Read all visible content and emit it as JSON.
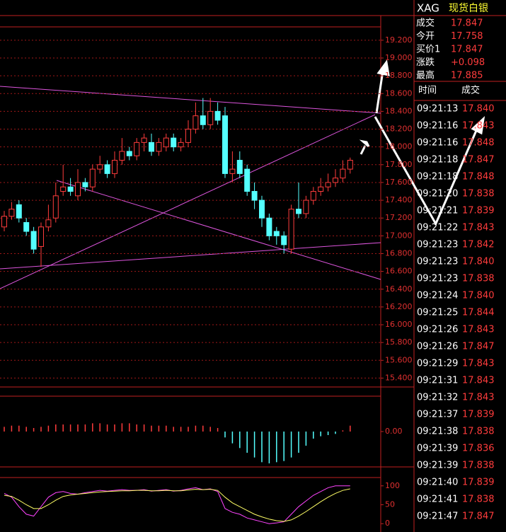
{
  "chart_data": [
    {
      "type": "candlestick",
      "up_color": "#ff3c3c",
      "down_color": "#54ffff",
      "grid": true,
      "open": [
        17.1,
        17.22,
        17.35,
        17.15,
        17.05,
        16.88,
        17.1,
        17.2,
        17.5,
        17.55,
        17.45,
        17.6,
        17.55,
        17.75,
        17.8,
        17.7,
        17.85,
        17.95,
        17.9,
        18.05,
        18.05,
        17.95,
        18.0,
        18.1,
        18.0,
        18.05,
        18.2,
        18.35,
        18.25,
        18.4,
        18.35,
        17.7,
        17.85,
        17.75,
        17.5,
        17.4,
        17.2,
        17.05,
        17.0,
        16.85,
        17.3,
        17.25,
        17.4,
        17.5,
        17.55,
        17.6,
        17.65,
        17.75
      ],
      "high": [
        17.28,
        17.38,
        17.4,
        17.2,
        17.1,
        17.15,
        17.35,
        17.6,
        17.8,
        17.65,
        17.75,
        17.65,
        17.8,
        17.9,
        17.85,
        17.95,
        18.1,
        18.0,
        18.1,
        18.15,
        18.15,
        18.1,
        18.15,
        18.15,
        18.1,
        18.3,
        18.5,
        18.55,
        18.55,
        18.5,
        18.45,
        17.95,
        17.95,
        17.8,
        17.6,
        17.45,
        17.25,
        17.1,
        17.05,
        17.35,
        17.6,
        17.45,
        17.55,
        17.65,
        17.7,
        17.75,
        17.85,
        17.88
      ],
      "low": [
        17.05,
        17.18,
        17.15,
        17.0,
        16.8,
        16.65,
        17.05,
        17.15,
        17.45,
        17.45,
        17.4,
        17.5,
        17.5,
        17.7,
        17.65,
        17.65,
        17.8,
        17.85,
        17.85,
        17.95,
        17.9,
        17.9,
        17.95,
        17.95,
        17.95,
        18.0,
        18.15,
        18.2,
        18.2,
        18.25,
        17.65,
        17.6,
        17.65,
        17.45,
        17.3,
        17.1,
        16.95,
        16.9,
        16.8,
        16.8,
        17.2,
        17.2,
        17.35,
        17.45,
        17.5,
        17.55,
        17.6,
        17.7
      ],
      "close": [
        17.22,
        17.3,
        17.2,
        17.05,
        16.85,
        17.1,
        17.18,
        17.45,
        17.55,
        17.5,
        17.6,
        17.55,
        17.75,
        17.8,
        17.7,
        17.85,
        17.95,
        17.9,
        18.05,
        18.1,
        17.95,
        18.05,
        18.1,
        18.0,
        18.05,
        18.2,
        18.35,
        18.25,
        18.4,
        18.3,
        17.7,
        17.75,
        17.7,
        17.5,
        17.4,
        17.2,
        17.0,
        17.0,
        16.9,
        17.3,
        17.25,
        17.4,
        17.5,
        17.55,
        17.6,
        17.65,
        17.75,
        17.85
      ],
      "ylim": [
        15.3,
        19.35
      ],
      "yticks": [
        {
          "value": 19.2,
          "label": "19.200"
        },
        {
          "value": 19.0,
          "label": "19.000"
        },
        {
          "value": 18.8,
          "label": "18.800"
        },
        {
          "value": 18.6,
          "label": "18.600"
        },
        {
          "value": 18.4,
          "label": "18.400"
        },
        {
          "value": 18.2,
          "label": "18.200"
        },
        {
          "value": 18.0,
          "label": "18.000"
        },
        {
          "value": 17.8,
          "label": "17.800"
        },
        {
          "value": 17.6,
          "label": "17.600"
        },
        {
          "value": 17.4,
          "label": "17.400"
        },
        {
          "value": 17.2,
          "label": "17.200"
        },
        {
          "value": 17.0,
          "label": "17.000"
        },
        {
          "value": 16.8,
          "label": "16.800"
        },
        {
          "value": 16.6,
          "label": "16.600"
        },
        {
          "value": 16.4,
          "label": "16.400"
        },
        {
          "value": 16.2,
          "label": "16.200"
        },
        {
          "value": 16.0,
          "label": "16.000"
        },
        {
          "value": 15.8,
          "label": "15.800"
        },
        {
          "value": 15.6,
          "label": "15.600"
        },
        {
          "value": 15.4,
          "label": "15.400"
        }
      ]
    },
    {
      "type": "bar",
      "up_color": "#ff3c3c",
      "down_color": "#54ffff",
      "values": [
        0.04,
        0.05,
        0.05,
        0.04,
        0.03,
        0.04,
        0.05,
        0.06,
        0.06,
        0.06,
        0.06,
        0.06,
        0.07,
        0.07,
        0.06,
        0.06,
        0.07,
        0.07,
        0.06,
        0.06,
        0.05,
        0.05,
        0.05,
        0.04,
        0.04,
        0.04,
        0.05,
        0.05,
        0.04,
        0.03,
        -0.05,
        -0.1,
        -0.14,
        -0.18,
        -0.22,
        -0.26,
        -0.27,
        -0.26,
        -0.25,
        -0.22,
        -0.18,
        -0.12,
        -0.06,
        -0.04,
        -0.03,
        -0.02,
        0.01,
        0.05
      ],
      "ylim": [
        -0.3,
        0.3
      ],
      "yticks": [
        {
          "value": 0,
          "label": "0.00"
        }
      ]
    },
    {
      "type": "line",
      "ylim": [
        -22,
        122
      ],
      "yticks": [
        100,
        50,
        0
      ],
      "series": [
        {
          "color": "#ff44ff",
          "values": [
            80,
            70,
            45,
            25,
            20,
            45,
            70,
            82,
            85,
            80,
            78,
            82,
            85,
            88,
            86,
            88,
            90,
            88,
            88,
            90,
            86,
            88,
            90,
            86,
            88,
            92,
            95,
            90,
            92,
            85,
            40,
            30,
            25,
            15,
            10,
            5,
            0,
            2,
            5,
            25,
            45,
            60,
            75,
            85,
            95,
            100,
            100,
            100
          ]
        },
        {
          "color": "#ffff66",
          "values": [
            75,
            72,
            62,
            50,
            40,
            40,
            50,
            62,
            72,
            76,
            78,
            80,
            82,
            84,
            85,
            86,
            87,
            87,
            88,
            88,
            87,
            87,
            88,
            87,
            87,
            89,
            91,
            90,
            91,
            88,
            70,
            55,
            45,
            35,
            25,
            18,
            12,
            8,
            6,
            10,
            20,
            32,
            45,
            58,
            70,
            80,
            88,
            92
          ]
        }
      ]
    }
  ],
  "quote": {
    "symbol": "XAG",
    "name": "现货白银",
    "fields": [
      [
        "成交",
        "17.847"
      ],
      [
        "今开",
        "17.758"
      ],
      [
        "买价1",
        "17.847"
      ],
      [
        "涨跌",
        "+0.098"
      ],
      [
        "最高",
        "17.885"
      ]
    ]
  },
  "trades": {
    "header": [
      "时间",
      "成交"
    ],
    "rows": [
      [
        "09:21:13",
        "17.840"
      ],
      [
        "09:21:16",
        "17.843"
      ],
      [
        "09:21:16",
        "17.848"
      ],
      [
        "09:21:18",
        "17.847"
      ],
      [
        "09:21:18",
        "17.848"
      ],
      [
        "09:21:20",
        "17.838"
      ],
      [
        "09:21:21",
        "17.839"
      ],
      [
        "09:21:22",
        "17.843"
      ],
      [
        "09:21:23",
        "17.842"
      ],
      [
        "09:21:23",
        "17.840"
      ],
      [
        "09:21:23",
        "17.838"
      ],
      [
        "09:21:24",
        "17.840"
      ],
      [
        "09:21:25",
        "17.844"
      ],
      [
        "09:21:26",
        "17.843"
      ],
      [
        "09:21:26",
        "17.847"
      ],
      [
        "09:21:29",
        "17.843"
      ],
      [
        "09:21:31",
        "17.843"
      ],
      [
        "09:21:32",
        "17.843"
      ],
      [
        "09:21:37",
        "17.839"
      ],
      [
        "09:21:38",
        "17.838"
      ],
      [
        "09:21:39",
        "17.836"
      ],
      [
        "09:21:39",
        "17.838"
      ],
      [
        "09:21:40",
        "17.839"
      ],
      [
        "09:21:41",
        "17.838"
      ],
      [
        "09:21:47",
        "17.847"
      ]
    ]
  }
}
